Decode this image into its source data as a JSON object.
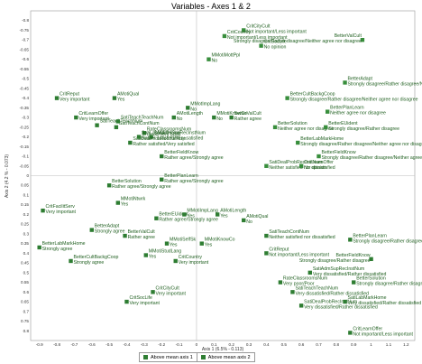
{
  "chart_data": {
    "type": "scatter",
    "title": "Variables - Axes 1 & 2",
    "xlabel": "Axis 1 (6.5% - 0.113)",
    "ylabel": "Axis 2 (4.2 % - 0.073)",
    "xlim": [
      -0.95,
      1.25
    ],
    "ylim": [
      -0.85,
      0.85
    ],
    "xticks": [
      -0.9,
      -0.8,
      -0.7,
      -0.6,
      -0.5,
      -0.4,
      -0.3,
      -0.2,
      -0.1,
      0,
      0.1,
      0.2,
      0.3,
      0.4,
      0.5,
      0.6,
      0.7,
      0.8,
      0.9,
      1,
      1.1,
      1.2
    ],
    "yticks": [
      -0.8,
      -0.75,
      -0.7,
      -0.65,
      -0.6,
      -0.55,
      -0.5,
      -0.45,
      -0.4,
      -0.35,
      -0.3,
      -0.25,
      -0.2,
      -0.15,
      -0.1,
      -0.05,
      0,
      0.05,
      0.1,
      0.15,
      0.2,
      0.25,
      0.3,
      0.35,
      0.4,
      0.45,
      0.5,
      0.55,
      0.6,
      0.65,
      0.7,
      0.75,
      0.8
    ],
    "legend_position": "bottom",
    "series": [
      {
        "name": "Above mean axis 1",
        "points": [
          {
            "label": "CritReput",
            "label2": "Very important",
            "x": -0.8,
            "y": -0.4
          },
          {
            "label": "CritLearnOffer",
            "label2": "Very important",
            "x": -0.69,
            "y": -0.3
          },
          {
            "label": "SatiTeachTeachNum",
            "label2": "",
            "x": -0.57,
            "y": -0.26
          },
          {
            "label": "SatiTeachContNum",
            "label2": "",
            "x": -0.46,
            "y": -0.25
          },
          {
            "label": "SatiDealProbRecInstNum",
            "label2": "Rather satisfied/Very satisfied",
            "x": -0.38,
            "y": -0.17
          },
          {
            "label": "RateClassroomsNum",
            "label2": "Good/Very good",
            "x": -0.3,
            "y": -0.22
          },
          {
            "label": "AMotiQual",
            "label2": "Yes",
            "x": -0.47,
            "y": -0.4
          },
          {
            "label": "SatiTeachTeachNum",
            "label2": "",
            "x": -0.45,
            "y": -0.28
          },
          {
            "label": "SatiAdmSupRecInstNum",
            "label2": "",
            "x": -0.26,
            "y": -0.2
          },
          {
            "label": "SatiLabMarkHome",
            "label2": "Rather satisfied/Very satisfied",
            "x": -0.33,
            "y": -0.2
          },
          {
            "label": "AMotiLength",
            "label2": "No",
            "x": -0.13,
            "y": -0.3
          },
          {
            "label": "MMotImpLang",
            "label2": "No",
            "x": -0.05,
            "y": -0.35
          },
          {
            "label": "MMotiKnowCo",
            "label2": "No",
            "x": 0.1,
            "y": -0.3
          },
          {
            "label": "BetterValCult",
            "label2": "Rather agree",
            "x": 0.2,
            "y": -0.3
          },
          {
            "label": "BetterFieldKnow",
            "label2": "Rather agree/Strongly agree",
            "x": -0.2,
            "y": -0.1
          },
          {
            "label": "BetterSolution",
            "label2": "Rather agree/Strongly agree",
            "x": -0.5,
            "y": 0.05
          },
          {
            "label": "BetterPlanLearn",
            "label2": "Rather agree/Strongly agree",
            "x": -0.2,
            "y": 0.02
          }
        ]
      },
      {
        "name": "Above mean axis 2",
        "points": [
          {
            "label": "CritCityCult",
            "label2": "Not important/Less important",
            "x": 0.27,
            "y": -0.75
          },
          {
            "label": "CritCountry",
            "label2": "Not important/Less important",
            "x": 0.16,
            "y": -0.72
          },
          {
            "label": "CritSocLife",
            "label2": "No opinion",
            "x": 0.37,
            "y": -0.67
          },
          {
            "label": "MMotiMottPpl",
            "label2": "No",
            "x": 0.07,
            "y": -0.6
          },
          {
            "label": "BetterValCult",
            "label2": "Strongly disagree/Rather disagree/Neither agree nor disagree",
            "x": 0.95,
            "y": -0.7
          },
          {
            "label": "BetterAdapt",
            "label2": "Strongly disagree/Rather disagree/Neither agree nor disagree",
            "x": 0.85,
            "y": -0.48
          },
          {
            "label": "BetterCultBackgCoop",
            "label2": "Strongly disagree/Rather disagree/Neither agree nor disagree",
            "x": 0.52,
            "y": -0.4
          },
          {
            "label": "BetterPlanLearn",
            "label2": "Neither agree nor disagree",
            "x": 0.75,
            "y": -0.33
          },
          {
            "label": "BetterSolution",
            "label2": "Neither agree nor disagree",
            "x": 0.45,
            "y": -0.25
          },
          {
            "label": "BetterEUident",
            "label2": "Strongly disagree/Rather disagree",
            "x": 0.74,
            "y": -0.25
          },
          {
            "label": "BetterLabMarkHome",
            "label2": "Strongly disagree/Rather disagree/Neither agree nor disagree",
            "x": 0.58,
            "y": -0.17
          },
          {
            "label": "BetterFieldKnow",
            "label2": "Strongly disagree/Rather disagree/Neither agree nor disagree",
            "x": 0.7,
            "y": -0.1
          },
          {
            "label": "SatiDealProbRecInstNum",
            "label2": "Neither satisfied nor dissatisfied",
            "x": 0.4,
            "y": -0.05
          },
          {
            "label": "CritLearnOffer",
            "label2": "No opinion",
            "x": 0.6,
            "y": -0.05
          }
        ]
      },
      {
        "name": "Other points",
        "points": [
          {
            "label": "CritFacilitServ",
            "label2": "Very important",
            "x": -0.88,
            "y": 0.18
          },
          {
            "label": "BetterLabMarkHome",
            "label2": "Strongly agree",
            "x": -0.9,
            "y": 0.37
          },
          {
            "label": "BetterAdapt",
            "label2": "Strongly agree",
            "x": -0.6,
            "y": 0.28
          },
          {
            "label": "BetterCultBackgCoop",
            "label2": "Strongly agree",
            "x": -0.72,
            "y": 0.44
          },
          {
            "label": "MMotiNtwrk",
            "label2": "Yes",
            "x": -0.45,
            "y": 0.14
          },
          {
            "label": "BetterValCult",
            "label2": "Rather agree",
            "x": -0.41,
            "y": 0.31
          },
          {
            "label": "BetterEUident",
            "label2": "Rather agree/Strongly agree",
            "x": -0.23,
            "y": 0.22
          },
          {
            "label": "MMotiStudLang",
            "label2": "Yes",
            "x": -0.29,
            "y": 0.41
          },
          {
            "label": "MMotiSelfSk",
            "label2": "Yes",
            "x": -0.17,
            "y": 0.35
          },
          {
            "label": "MMotiImpLang",
            "label2": "Yes",
            "x": -0.07,
            "y": 0.2
          },
          {
            "label": "MMotiKnowCo",
            "label2": "Yes",
            "x": 0.03,
            "y": 0.35
          },
          {
            "label": "AMotiLength",
            "label2": "Yes",
            "x": 0.12,
            "y": 0.2
          },
          {
            "label": "AMotiQual",
            "label2": "No",
            "x": 0.27,
            "y": 0.23
          },
          {
            "label": "CritCountry",
            "label2": "Very important",
            "x": -0.12,
            "y": 0.44
          },
          {
            "label": "CritCityCult",
            "label2": "Very important",
            "x": -0.25,
            "y": 0.6
          },
          {
            "label": "CritSocLife",
            "label2": "Very important",
            "x": -0.4,
            "y": 0.65
          },
          {
            "label": "SatiTeachContNum",
            "label2": "Neither satisfied nor dissatisfied",
            "x": 0.4,
            "y": 0.31
          },
          {
            "label": "BetterPlanLearn",
            "label2": "Strongly disagree/Rather disagree",
            "x": 0.88,
            "y": 0.33
          },
          {
            "label": "CritReput",
            "label2": "Not important/Less important",
            "x": 0.4,
            "y": 0.4
          },
          {
            "label": "BetterFieldKnow",
            "label2": "Strongly disagree/Rather disagree",
            "x": 1.0,
            "y": 0.43
          },
          {
            "label": "SatiAdmSupRecInstNum",
            "label2": "Very dissatisfied/Rather dissatisfied",
            "x": 0.65,
            "y": 0.5
          },
          {
            "label": "RateClassroomsNum",
            "label2": "Very poor/Poor",
            "x": 0.48,
            "y": 0.55
          },
          {
            "label": "BetterSolution",
            "label2": "Strongly disagree/Rather disagree",
            "x": 0.9,
            "y": 0.55
          },
          {
            "label": "SatiTeachTeachNum",
            "label2": "Very dissatisfied/Rather dissatisfied",
            "x": 0.55,
            "y": 0.6
          },
          {
            "label": "SatiDealProbRecInstNum",
            "label2": "Very dissatisfied/Rather dissatisfied",
            "x": 0.6,
            "y": 0.67
          },
          {
            "label": "SatiLabMarkHome",
            "label2": "Very dissatisfied/Rather dissatisfied",
            "x": 0.85,
            "y": 0.65
          },
          {
            "label": "CritLearnOffer",
            "label2": "Not important/Less important",
            "x": 0.88,
            "y": 0.81
          }
        ]
      }
    ]
  }
}
